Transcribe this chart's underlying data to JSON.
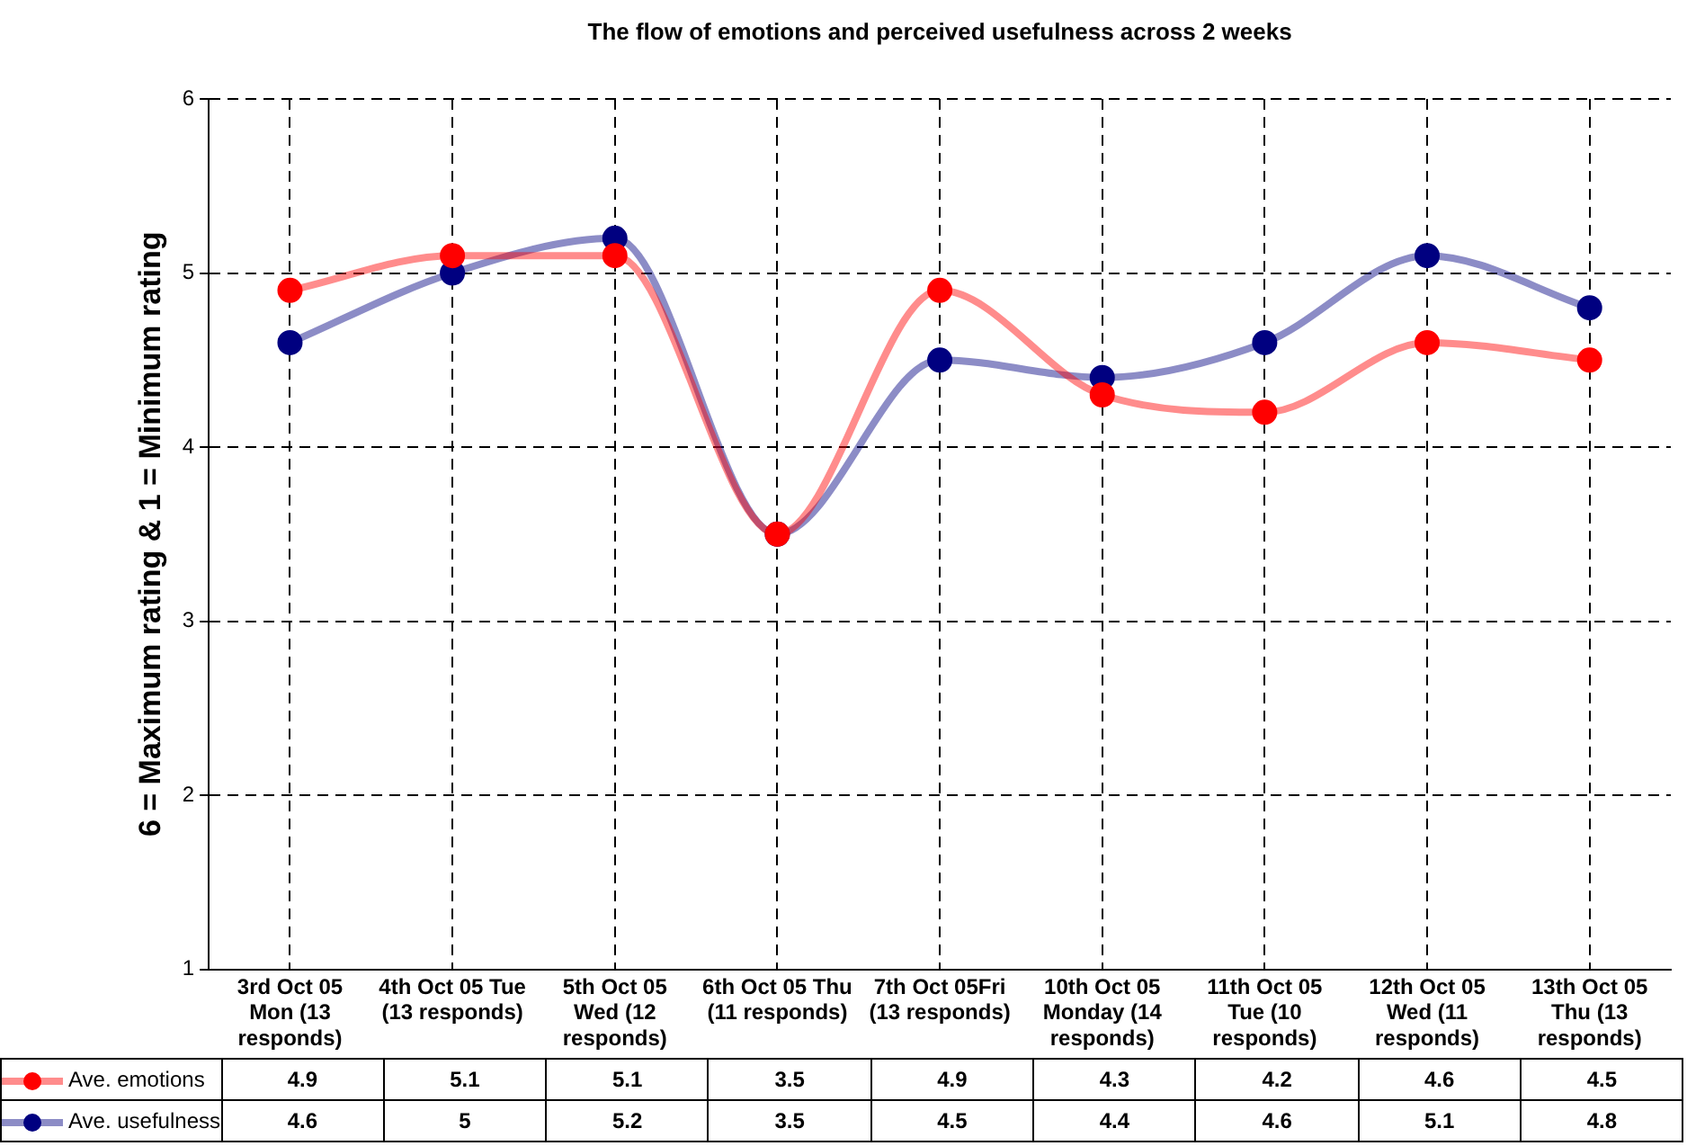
{
  "chart_data": {
    "type": "line",
    "title": "The flow of emotions and perceived usefulness across 2 weeks",
    "ylabel": "6 = Maximum rating & 1 = Minimum rating",
    "categories": [
      "3rd Oct 05 Mon (13 responds)",
      "4th Oct 05 Tue (13 responds)",
      "5th Oct 05 Wed (12 responds)",
      "6th Oct 05 Thu (11 responds)",
      "7th Oct 05Fri (13 responds)",
      "10th Oct 05 Monday (14 responds)",
      "11th Oct 05 Tue (10 responds)",
      "12th Oct 05 Wed (11 responds)",
      "13th Oct 05 Thu (13 responds)"
    ],
    "series": [
      {
        "name": "Ave. emotions",
        "color": "#ff0000",
        "values": [
          4.9,
          5.1,
          5.1,
          3.5,
          4.9,
          4.3,
          4.2,
          4.6,
          4.5
        ]
      },
      {
        "name": "Ave. usefulness",
        "color": "#000080",
        "values": [
          4.6,
          5,
          5.2,
          3.5,
          4.5,
          4.4,
          4.6,
          5.1,
          4.8
        ]
      }
    ],
    "ylim": [
      1,
      6
    ],
    "yticks": [
      1,
      2,
      3,
      4,
      5,
      6
    ],
    "grid": true,
    "legend": "bottom",
    "marker": "circle",
    "line_style": "solid",
    "data_labels": true
  }
}
